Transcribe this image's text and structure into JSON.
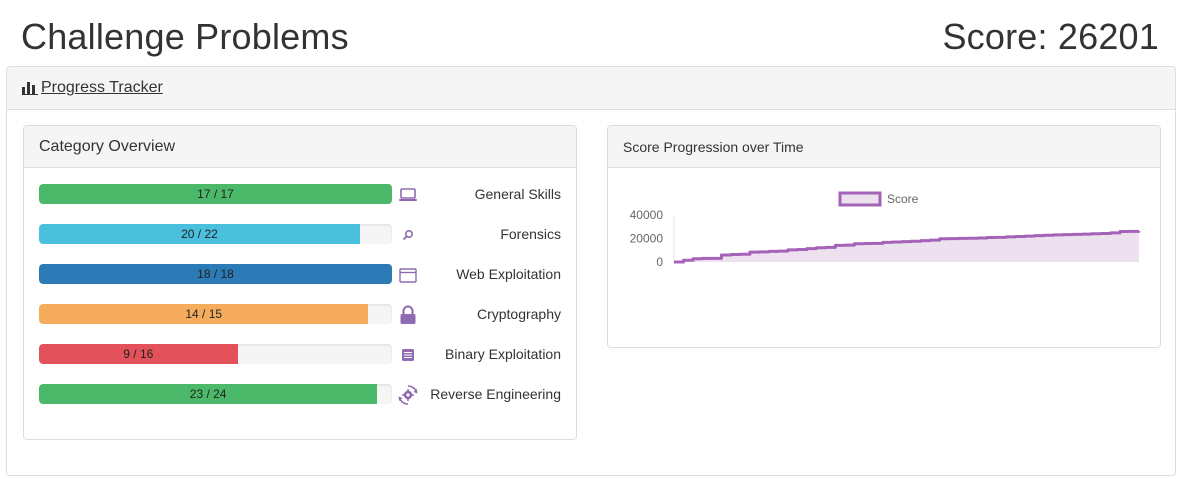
{
  "header": {
    "title": "Challenge Problems",
    "score_text": "Score: 26201"
  },
  "tracker": {
    "label": " Progress Tracker",
    "icon": "bar-chart-icon"
  },
  "category_panel": {
    "title": "Category Overview",
    "categories": [
      {
        "label": "General Skills",
        "solved": 17,
        "total": 17,
        "progress_text": "17 / 17",
        "color": "#4cb96a",
        "icon": "laptop-icon"
      },
      {
        "label": "Forensics",
        "solved": 20,
        "total": 22,
        "progress_text": "20 / 22",
        "color": "#4bc0dc",
        "icon": "magnifier-icon"
      },
      {
        "label": "Web Exploitation",
        "solved": 18,
        "total": 18,
        "progress_text": "18 / 18",
        "color": "#2c7bb6",
        "icon": "browser-window-icon"
      },
      {
        "label": "Cryptography",
        "solved": 14,
        "total": 15,
        "progress_text": "14 / 15",
        "color": "#f5ad5d",
        "icon": "lock-icon"
      },
      {
        "label": "Binary Exploitation",
        "solved": 9,
        "total": 16,
        "progress_text": "9 / 16",
        "color": "#e3515a",
        "icon": "binary-chip-icon"
      },
      {
        "label": "Reverse Engineering",
        "solved": 23,
        "total": 24,
        "progress_text": "23 / 24",
        "color": "#4cb96a",
        "icon": "gear-cycle-icon"
      }
    ]
  },
  "chart_panel": {
    "title": "Score Progression over Time"
  },
  "chart_data": {
    "type": "area",
    "title": "",
    "xlabel": "",
    "ylabel": "",
    "ylim": [
      0,
      40000
    ],
    "y_ticks": [
      "0",
      "20000",
      "40000"
    ],
    "legend": {
      "position": "top",
      "entries": [
        "Score"
      ]
    },
    "grid": false,
    "color": "#a563b8",
    "fill_color": "#ede0ef",
    "series": [
      {
        "name": "Score",
        "x": [
          0,
          1,
          2,
          3,
          4,
          5,
          6,
          7,
          8,
          9,
          10,
          11,
          12,
          13,
          14,
          15,
          16,
          17,
          18,
          19,
          20,
          21,
          22,
          23,
          24,
          25,
          26,
          27,
          28,
          29,
          30,
          31,
          32,
          33,
          34,
          35,
          36,
          37,
          38,
          39,
          40,
          41,
          42,
          43,
          44,
          45,
          46,
          47,
          48,
          49
        ],
        "y": [
          0,
          1500,
          2800,
          3100,
          3100,
          6000,
          6400,
          6600,
          8400,
          8600,
          9000,
          9300,
          10300,
          10600,
          11400,
          12100,
          12400,
          14200,
          14400,
          15500,
          15700,
          15900,
          16700,
          17000,
          17300,
          17700,
          18200,
          18600,
          19800,
          19900,
          20100,
          20200,
          20400,
          20800,
          21000,
          21400,
          21700,
          22000,
          22500,
          22800,
          23100,
          23300,
          23500,
          23700,
          24000,
          24300,
          24800,
          26000,
          26100,
          26201
        ]
      }
    ]
  }
}
